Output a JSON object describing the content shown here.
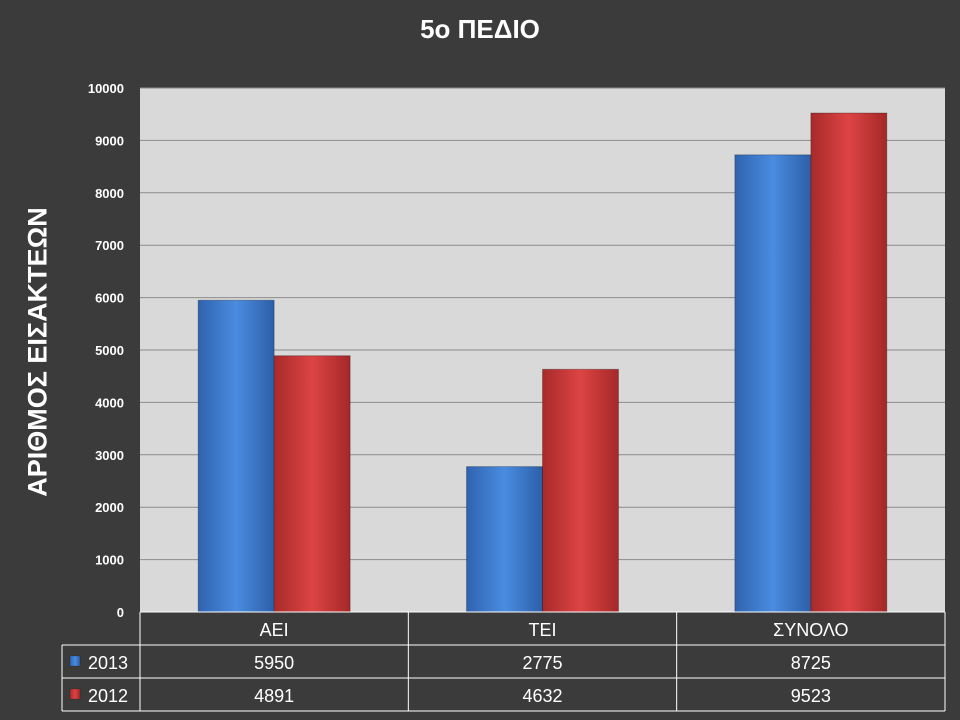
{
  "chart_data": {
    "type": "bar",
    "title": "5ο ΠΕΔΙΟ",
    "ylabel": "ΑΡΙΘΜΟΣ ΕΙΣΑΚΤΕΩΝ",
    "xlabel": "",
    "categories": [
      "ΑΕΙ",
      "ΤΕΙ",
      "ΣΥΝΟΛΟ"
    ],
    "series": [
      {
        "name": "2013",
        "values": [
          5950,
          2775,
          8725
        ],
        "color": "#3f7fd6"
      },
      {
        "name": "2012",
        "values": [
          4891,
          4632,
          9523
        ],
        "color": "#d23a3a"
      }
    ],
    "ylim": [
      0,
      10000
    ],
    "yticks": [
      0,
      1000,
      2000,
      3000,
      4000,
      5000,
      6000,
      7000,
      8000,
      9000,
      10000
    ],
    "grid": true,
    "legend": "data-table",
    "plot_background": "#d9d9d9"
  }
}
